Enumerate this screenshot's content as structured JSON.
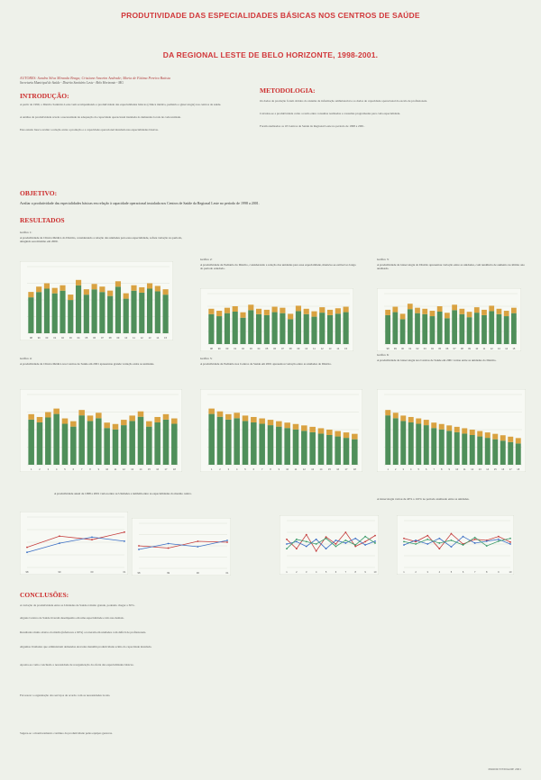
{
  "header": {
    "title": "PRODUTIVIDADE DAS ESPECIALIDADES BÁSICAS NOS CENTROS DE SAÚDE",
    "subtitle": "DA REGIONAL LESTE DE BELO HORIZONTE, 1998-2001."
  },
  "authors": {
    "line1": "AUTORES: Sandra Silva Miranda Braga; Cristiane Amorim Andrade; Maria de Fátima Pereira Batista",
    "line2": "Secretaria Municipal de Saúde - Distrito Sanitário Leste - Belo Horizonte - MG"
  },
  "sections": {
    "intro": "INTRODUÇÃO:",
    "method": "METODOLOGIA:",
    "objective": "OBJETIVO:",
    "results": "RESULTADOS",
    "conclusions": "CONCLUSÕES:"
  },
  "intro_text": [
    "A partir de 1999, o Distrito Sanitário Leste vem acompanhando a produtividade das especialidades básicas (clínica médica, pediatria e ginecologia) nos centros de saúde.",
    "A análise da produtividade revela a necessidade de adequação da capacidade operacional instalada às demandas locais de cada unidade.",
    "Este estudo busca avaliar a relação entre a produção e a capacidade operacional instalada nas especialidades básicas."
  ],
  "method_text": [
    "Os dados de produção foram obtidos do sistema de informação ambulatorial e os dados de capacidade operacional da escala de profissionais.",
    "Calculou-se a produtividade como a razão entre consultas realizadas e consultas programadas para cada especialidade.",
    "Foram analisados os 18 Centros de Saúde da Regional Leste no período de 1998 a 2001."
  ],
  "objective_text": "Avaliar a produtividade das especialidades básicas em relação à capacidade operacional instalada nos Centros de Saúde da Regional Leste no período de 1998 a 2001.",
  "graph_captions": {
    "g1": "Gráfico 1:",
    "g2": "Gráfico 2:",
    "g3": "Gráfico 3:",
    "g4": "Gráfico 4:",
    "g5": "Gráfico 5:",
    "g6": "Gráfico 6:"
  },
  "graph_texts": {
    "g1": "A produtividade da Clínica Médica do Distrito, considerando a relação das unidades para essa especialidade, sofreu variação no período, atingindo seu máximo em 2000.",
    "g2": "A produtividade da Pediatria do Distrito, considerando a relação das unidades para essa especialidade, manteve-se estável ao longo do período estudado.",
    "g3": "A produtividade da Ginecologia do Distrito apresentou variação entre as unidades, com tendência de aumento no último ano analisado.",
    "g4": "A produtividade da Clínica Médica nos Centros de Saúde em 2001 apresentou grande variação entre as unidades.",
    "g5": "A produtividade da Pediatria nos Centros de Saúde em 2001 apresentou variação entre as unidades do Distrito.",
    "g6": "A produtividade da Ginecologia nos Centros de Saúde em 2001 variou entre as unidades do Distrito."
  },
  "lower_text": {
    "left": "A produtividade anual de 1998 a 2001 variou entre as Unidades e também entre as especialidades do mesmo centro.",
    "right": "A Ginecologia variou de 40% a 110% no período analisado entre as unidades."
  },
  "conclusion_text": [
    "A variação da produtividade entre as Unidades de Saúde é muito grande, podendo chegar a 30%.",
    "Alguns Centros de Saúde tiveram desempenho em uma especialidade e não nas demais.",
    "Resultados muito abaixo da média (inferiores a 60%) ocorreram em unidades com déficit de profissionais.",
    "Algumas Unidades que administram demandas elevadas mantêm produtividade acima da capacidade instalada.",
    "Aponta-se como conclusão a necessidade de reorganização da oferta das especialidades básicas.",
    "Favorecer a organização dos serviços de acordo com as necessidades locais.",
    "Sugere-se o monitoramento contínuo da produtividade pelas equipes gestoras."
  ],
  "footer": "PRODUTIVIDADE 2001",
  "chart_data": [
    {
      "type": "bar",
      "id": "g1",
      "categories": [
        "98",
        "99",
        "00",
        "01",
        "02",
        "03",
        "04",
        "05",
        "06",
        "07",
        "08",
        "09",
        "10",
        "11",
        "12",
        "13",
        "14",
        "15"
      ],
      "values": [
        62,
        70,
        75,
        68,
        72,
        58,
        80,
        66,
        74,
        70,
        64,
        78,
        60,
        72,
        69,
        75,
        71,
        66
      ],
      "ylim": [
        0,
        100
      ]
    },
    {
      "type": "bar",
      "id": "g2",
      "categories": [
        "98",
        "99",
        "00",
        "01",
        "02",
        "03",
        "04",
        "05",
        "06",
        "07",
        "08",
        "09",
        "10",
        "11",
        "12",
        "13",
        "14",
        "15"
      ],
      "values": [
        70,
        66,
        72,
        75,
        63,
        78,
        70,
        68,
        74,
        72,
        60,
        76,
        70,
        65,
        73,
        68,
        71,
        74
      ],
      "ylim": [
        0,
        100
      ]
    },
    {
      "type": "bar",
      "id": "g3",
      "categories": [
        "98",
        "99",
        "00",
        "01",
        "02",
        "03",
        "04",
        "05",
        "06",
        "07",
        "08",
        "09",
        "10",
        "11",
        "12",
        "13",
        "14",
        "15"
      ],
      "values": [
        68,
        74,
        60,
        80,
        72,
        70,
        66,
        75,
        62,
        78,
        70,
        64,
        73,
        68,
        76,
        70,
        66,
        72
      ],
      "ylim": [
        0,
        100
      ]
    },
    {
      "type": "bar",
      "id": "g4",
      "categories": [
        "1",
        "2",
        "3",
        "4",
        "5",
        "6",
        "7",
        "8",
        "9",
        "10",
        "11",
        "12",
        "13",
        "14",
        "15",
        "16",
        "17",
        "18"
      ],
      "values": [
        72,
        68,
        75,
        80,
        66,
        62,
        78,
        70,
        74,
        60,
        58,
        64,
        70,
        76,
        62,
        68,
        72,
        66
      ],
      "ylim": [
        0,
        100
      ]
    },
    {
      "type": "bar",
      "id": "g5",
      "categories": [
        "1",
        "2",
        "3",
        "4",
        "5",
        "6",
        "7",
        "8",
        "9",
        "10",
        "11",
        "12",
        "13",
        "14",
        "15",
        "16",
        "17",
        "18"
      ],
      "values": [
        80,
        76,
        72,
        74,
        70,
        68,
        66,
        64,
        62,
        60,
        58,
        56,
        54,
        52,
        50,
        48,
        46,
        44
      ],
      "ylim": [
        0,
        100
      ]
    },
    {
      "type": "bar",
      "id": "g6",
      "categories": [
        "1",
        "2",
        "3",
        "4",
        "5",
        "6",
        "7",
        "8",
        "9",
        "10",
        "11",
        "12",
        "13",
        "14",
        "15",
        "16",
        "17",
        "18"
      ],
      "values": [
        78,
        74,
        70,
        68,
        66,
        64,
        60,
        58,
        56,
        54,
        52,
        50,
        48,
        46,
        44,
        42,
        40,
        38
      ],
      "ylim": [
        0,
        100
      ]
    },
    {
      "type": "line",
      "id": "l1",
      "x": [
        "98",
        "99",
        "00",
        "01"
      ],
      "series": [
        {
          "values": [
            40,
            62,
            55,
            70
          ]
        },
        {
          "values": [
            30,
            48,
            60,
            52
          ]
        }
      ]
    },
    {
      "type": "line",
      "id": "l2",
      "x": [
        "98",
        "99",
        "00",
        "01"
      ],
      "series": [
        {
          "values": [
            50,
            45,
            60,
            58
          ]
        },
        {
          "values": [
            42,
            55,
            48,
            62
          ]
        }
      ]
    },
    {
      "type": "line",
      "id": "l3",
      "x": [
        "1",
        "2",
        "3",
        "4",
        "5",
        "6",
        "7",
        "8",
        "9",
        "10"
      ],
      "series": [
        {
          "values": [
            60,
            40,
            70,
            35,
            65,
            50,
            75,
            45,
            55,
            68
          ]
        },
        {
          "values": [
            50,
            55,
            45,
            60,
            40,
            58,
            52,
            62,
            48,
            56
          ]
        },
        {
          "values": [
            40,
            60,
            55,
            50,
            62,
            45,
            58,
            48,
            66,
            52
          ]
        }
      ]
    },
    {
      "type": "line",
      "id": "l4",
      "x": [
        "1",
        "2",
        "3",
        "4",
        "5",
        "6",
        "7",
        "8",
        "9",
        "10"
      ],
      "series": [
        {
          "values": [
            62,
            55,
            68,
            40,
            72,
            50,
            60,
            58,
            66,
            54
          ]
        },
        {
          "values": [
            48,
            58,
            50,
            62,
            44,
            66,
            52,
            56,
            60,
            50
          ]
        },
        {
          "values": [
            55,
            50,
            60,
            52,
            58,
            48,
            64,
            46,
            56,
            62
          ]
        }
      ]
    }
  ]
}
